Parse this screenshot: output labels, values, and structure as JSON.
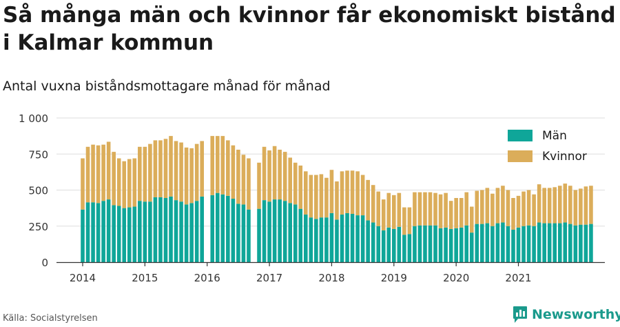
{
  "title": "Så många män och kvinnor får ekonomiskt bistånd i Kalmar kommun",
  "subtitle": "Antal vuxna biståndsmottagare månad för månad",
  "source": "Källa: Socialstyrelsen",
  "brand": "Newsworthy",
  "colors": {
    "men": "#0fa699",
    "women": "#dbad5a",
    "grid": "#dddddd",
    "axis": "#333333"
  },
  "chart_data": {
    "type": "bar",
    "stacked": true,
    "title": "Så många män och kvinnor får ekonomiskt bistånd i Kalmar kommun",
    "subtitle": "Antal vuxna biståndsmottagare månad för månad",
    "ylim": [
      0,
      1000
    ],
    "yticks": [
      0,
      250,
      500,
      750,
      1000
    ],
    "ytick_labels": [
      "0",
      "250",
      "500",
      "750",
      "1 000"
    ],
    "xtick_labels": [
      "2014",
      "2015",
      "2016",
      "2017",
      "2018",
      "2019",
      "2020",
      "2021"
    ],
    "start": "2014-01",
    "grid": true,
    "legend_position": "top-right",
    "series": [
      {
        "name": "Män",
        "color": "#0fa699",
        "values": [
          365,
          415,
          415,
          410,
          425,
          435,
          395,
          390,
          375,
          380,
          385,
          425,
          420,
          420,
          450,
          450,
          445,
          455,
          430,
          420,
          400,
          410,
          425,
          455,
          null,
          465,
          480,
          470,
          460,
          440,
          405,
          400,
          365,
          null,
          370,
          430,
          420,
          435,
          435,
          425,
          410,
          400,
          370,
          330,
          310,
          300,
          310,
          310,
          340,
          295,
          330,
          340,
          335,
          325,
          325,
          290,
          275,
          250,
          220,
          240,
          230,
          245,
          190,
          195,
          250,
          255,
          255,
          255,
          255,
          235,
          240,
          230,
          235,
          240,
          255,
          205,
          265,
          265,
          270,
          250,
          270,
          275,
          250,
          225,
          240,
          250,
          255,
          250,
          275,
          270,
          270,
          270,
          270,
          275,
          265,
          255,
          260,
          260,
          265
        ]
      },
      {
        "name": "Kvinnor",
        "color": "#dbad5a",
        "values": [
          355,
          385,
          400,
          400,
          390,
          400,
          370,
          330,
          325,
          335,
          335,
          375,
          380,
          400,
          395,
          395,
          410,
          420,
          410,
          410,
          395,
          380,
          395,
          385,
          null,
          410,
          395,
          405,
          385,
          370,
          375,
          345,
          355,
          null,
          320,
          370,
          355,
          370,
          345,
          340,
          315,
          290,
          300,
          300,
          295,
          305,
          300,
          275,
          300,
          265,
          300,
          295,
          300,
          305,
          280,
          280,
          260,
          240,
          215,
          240,
          235,
          235,
          190,
          185,
          235,
          230,
          230,
          230,
          225,
          235,
          240,
          195,
          210,
          205,
          230,
          180,
          230,
          235,
          245,
          225,
          245,
          255,
          250,
          220,
          220,
          240,
          245,
          220,
          265,
          245,
          245,
          250,
          260,
          270,
          265,
          245,
          250,
          265,
          265
        ]
      }
    ]
  }
}
